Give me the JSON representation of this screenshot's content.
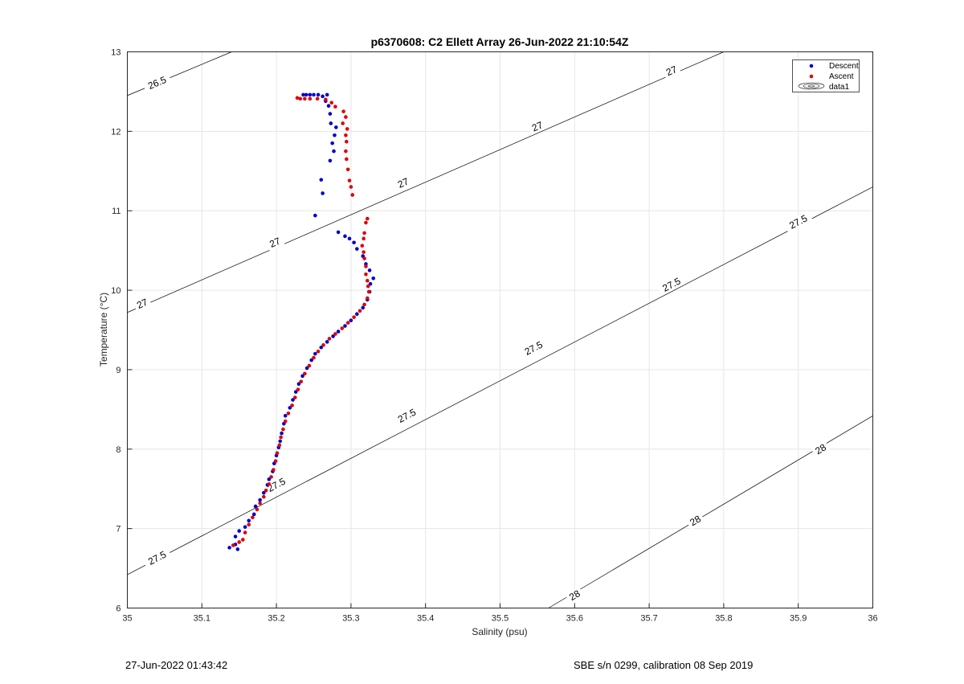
{
  "chart_data": {
    "type": "scatter",
    "title": "p6370608: C2 Ellett Array 26-Jun-2022 21:10:54Z",
    "xlabel": "Salinity (psu)",
    "ylabel": "Temperature (°C)",
    "xlim": [
      35,
      36
    ],
    "ylim": [
      6,
      13
    ],
    "xticks": [
      "35",
      "35.1",
      "35.2",
      "35.3",
      "35.4",
      "35.5",
      "35.6",
      "35.7",
      "35.8",
      "35.9",
      "36"
    ],
    "yticks": [
      "6",
      "7",
      "8",
      "9",
      "10",
      "11",
      "12",
      "13"
    ],
    "grid": true,
    "legend": {
      "position": "top-right",
      "entries": [
        "Descent",
        "Ascent",
        "data1"
      ]
    },
    "series": [
      {
        "name": "Descent",
        "color": "#0000cc",
        "points": [
          [
            35.137,
            6.76
          ],
          [
            35.145,
            6.8
          ],
          [
            35.148,
            6.74
          ],
          [
            35.145,
            6.9
          ],
          [
            35.15,
            6.97
          ],
          [
            35.158,
            7.02
          ],
          [
            35.163,
            7.1
          ],
          [
            35.17,
            7.18
          ],
          [
            35.172,
            7.28
          ],
          [
            35.178,
            7.36
          ],
          [
            35.183,
            7.45
          ],
          [
            35.188,
            7.55
          ],
          [
            35.19,
            7.62
          ],
          [
            35.195,
            7.72
          ],
          [
            35.197,
            7.82
          ],
          [
            35.2,
            7.92
          ],
          [
            35.203,
            8.02
          ],
          [
            35.205,
            8.1
          ],
          [
            35.207,
            8.2
          ],
          [
            35.21,
            8.32
          ],
          [
            35.212,
            8.42
          ],
          [
            35.218,
            8.52
          ],
          [
            35.222,
            8.62
          ],
          [
            35.226,
            8.72
          ],
          [
            35.23,
            8.82
          ],
          [
            35.235,
            8.92
          ],
          [
            35.241,
            9.02
          ],
          [
            35.247,
            9.12
          ],
          [
            35.252,
            9.2
          ],
          [
            35.26,
            9.28
          ],
          [
            35.268,
            9.35
          ],
          [
            35.276,
            9.42
          ],
          [
            35.283,
            9.48
          ],
          [
            35.292,
            9.55
          ],
          [
            35.3,
            9.62
          ],
          [
            35.308,
            9.7
          ],
          [
            35.316,
            9.78
          ],
          [
            35.322,
            9.88
          ],
          [
            35.325,
            9.98
          ],
          [
            35.326,
            10.08
          ],
          [
            35.33,
            10.15
          ],
          [
            35.325,
            10.25
          ],
          [
            35.32,
            10.33
          ],
          [
            35.316,
            10.43
          ],
          [
            35.308,
            10.52
          ],
          [
            35.304,
            10.6
          ],
          [
            35.298,
            10.65
          ],
          [
            35.292,
            10.68
          ],
          [
            35.283,
            10.73
          ],
          [
            35.252,
            10.94
          ],
          [
            35.262,
            11.22
          ],
          [
            35.26,
            11.39
          ],
          [
            35.272,
            11.63
          ],
          [
            35.277,
            11.75
          ],
          [
            35.275,
            11.85
          ],
          [
            35.278,
            11.95
          ],
          [
            35.28,
            12.05
          ],
          [
            35.273,
            12.1
          ],
          [
            35.272,
            12.22
          ],
          [
            35.27,
            12.32
          ],
          [
            35.266,
            12.38
          ],
          [
            35.262,
            12.44
          ],
          [
            35.256,
            12.46
          ],
          [
            35.25,
            12.46
          ],
          [
            35.245,
            12.46
          ],
          [
            35.24,
            12.46
          ],
          [
            35.236,
            12.46
          ],
          [
            35.268,
            12.46
          ]
        ]
      },
      {
        "name": "Ascent",
        "color": "#e00000",
        "points": [
          [
            35.142,
            6.79
          ],
          [
            35.15,
            6.83
          ],
          [
            35.155,
            6.86
          ],
          [
            35.158,
            6.95
          ],
          [
            35.163,
            7.05
          ],
          [
            35.168,
            7.14
          ],
          [
            35.174,
            7.24
          ],
          [
            35.178,
            7.32
          ],
          [
            35.183,
            7.4
          ],
          [
            35.186,
            7.48
          ],
          [
            35.19,
            7.56
          ],
          [
            35.193,
            7.65
          ],
          [
            35.196,
            7.74
          ],
          [
            35.199,
            7.85
          ],
          [
            35.201,
            7.95
          ],
          [
            35.204,
            8.05
          ],
          [
            35.206,
            8.15
          ],
          [
            35.209,
            8.25
          ],
          [
            35.212,
            8.35
          ],
          [
            35.216,
            8.45
          ],
          [
            35.221,
            8.55
          ],
          [
            35.225,
            8.65
          ],
          [
            35.229,
            8.75
          ],
          [
            35.233,
            8.85
          ],
          [
            35.238,
            8.95
          ],
          [
            35.244,
            9.05
          ],
          [
            35.25,
            9.15
          ],
          [
            35.256,
            9.23
          ],
          [
            35.263,
            9.31
          ],
          [
            35.271,
            9.39
          ],
          [
            35.279,
            9.45
          ],
          [
            35.288,
            9.52
          ],
          [
            35.296,
            9.59
          ],
          [
            35.304,
            9.66
          ],
          [
            35.312,
            9.74
          ],
          [
            35.318,
            9.82
          ],
          [
            35.322,
            9.9
          ],
          [
            35.324,
            9.98
          ],
          [
            35.323,
            10.05
          ],
          [
            35.322,
            10.12
          ],
          [
            35.32,
            10.2
          ],
          [
            35.32,
            10.3
          ],
          [
            35.318,
            10.4
          ],
          [
            35.317,
            10.48
          ],
          [
            35.315,
            10.56
          ],
          [
            35.317,
            10.65
          ],
          [
            35.318,
            10.72
          ],
          [
            35.32,
            10.85
          ],
          [
            35.322,
            10.9
          ],
          [
            35.302,
            11.2
          ],
          [
            35.3,
            11.3
          ],
          [
            35.298,
            11.38
          ],
          [
            35.296,
            11.52
          ],
          [
            35.294,
            11.65
          ],
          [
            35.293,
            11.75
          ],
          [
            35.294,
            11.87
          ],
          [
            35.293,
            11.95
          ],
          [
            35.295,
            12.03
          ],
          [
            35.289,
            12.1
          ],
          [
            35.293,
            12.18
          ],
          [
            35.29,
            12.25
          ],
          [
            35.279,
            12.31
          ],
          [
            35.274,
            12.36
          ],
          [
            35.266,
            12.4
          ],
          [
            35.255,
            12.41
          ],
          [
            35.245,
            12.41
          ],
          [
            35.238,
            12.41
          ],
          [
            35.232,
            12.41
          ],
          [
            35.228,
            12.42
          ]
        ]
      }
    ],
    "contours": [
      {
        "label": "26.5",
        "points": [
          [
            35.0,
            12.45
          ],
          [
            35.14,
            13.0
          ]
        ],
        "label_at": [
          [
            35.04,
            12.61
          ]
        ]
      },
      {
        "label": "27",
        "points": [
          [
            35.0,
            9.72
          ],
          [
            35.8,
            13.0
          ]
        ],
        "label_at": [
          [
            35.02,
            9.83
          ],
          [
            35.198,
            10.6
          ],
          [
            35.37,
            11.35
          ],
          [
            35.55,
            12.06
          ],
          [
            35.73,
            12.76
          ]
        ]
      },
      {
        "label": "27.5",
        "points": [
          [
            35.0,
            6.42
          ],
          [
            36.0,
            11.3
          ]
        ],
        "label_at": [
          [
            35.04,
            6.63
          ],
          [
            35.2,
            7.55
          ],
          [
            35.375,
            8.42
          ],
          [
            35.545,
            9.27
          ],
          [
            35.73,
            10.07
          ],
          [
            35.9,
            10.86
          ]
        ]
      },
      {
        "label": "28",
        "points": [
          [
            35.565,
            6.0
          ],
          [
            36.0,
            8.42
          ]
        ],
        "label_at": [
          [
            35.6,
            6.16
          ],
          [
            35.762,
            7.1
          ],
          [
            35.93,
            8.0
          ]
        ]
      }
    ]
  },
  "footer": {
    "left": "27-Jun-2022 01:43:42",
    "right": "SBE s/n 0299, calibration 08 Sep 2019"
  }
}
